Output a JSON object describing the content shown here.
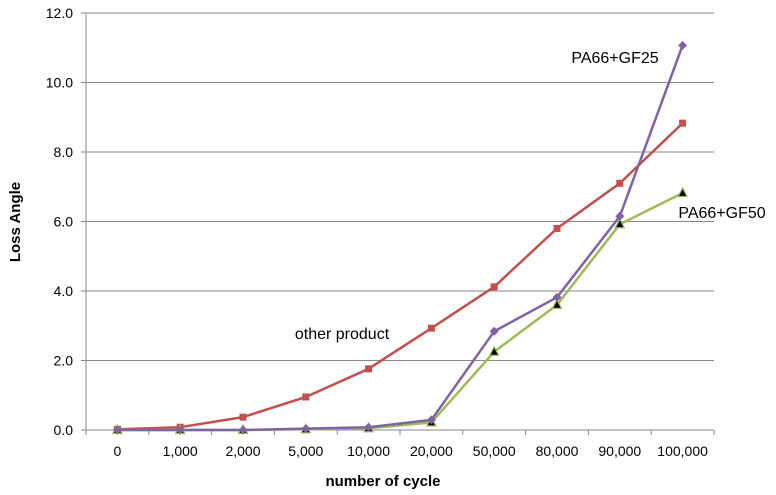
{
  "chart_data": {
    "type": "line",
    "title": "",
    "xlabel": "number of cycle",
    "ylabel": "Loss Angle",
    "categories": [
      "0",
      "1,000",
      "2,000",
      "5,000",
      "10,000",
      "20,000",
      "50,000",
      "80,000",
      "90,000",
      "100,000"
    ],
    "ylim": [
      0,
      12
    ],
    "yticks": [
      "0.0",
      "2.0",
      "4.0",
      "6.0",
      "8.0",
      "10.0",
      "12.0"
    ],
    "grid": "horizontal",
    "series": [
      {
        "name": "other product",
        "color": "#C0504D",
        "marker": "square",
        "values": [
          0.02,
          0.08,
          0.37,
          0.95,
          1.76,
          2.93,
          4.12,
          5.8,
          7.1,
          8.83
        ]
      },
      {
        "name": "PA66+GF25",
        "color": "#8064A2",
        "marker": "diamond",
        "values": [
          0.0,
          0.0,
          0.0,
          0.04,
          0.08,
          0.29,
          2.84,
          3.82,
          6.15,
          11.07
        ]
      },
      {
        "name": "PA66+GF50",
        "color": "#9BBB59",
        "marker": "triangle",
        "values": [
          0.0,
          0.0,
          0.0,
          0.02,
          0.05,
          0.22,
          2.25,
          3.6,
          5.92,
          6.82
        ]
      }
    ]
  }
}
